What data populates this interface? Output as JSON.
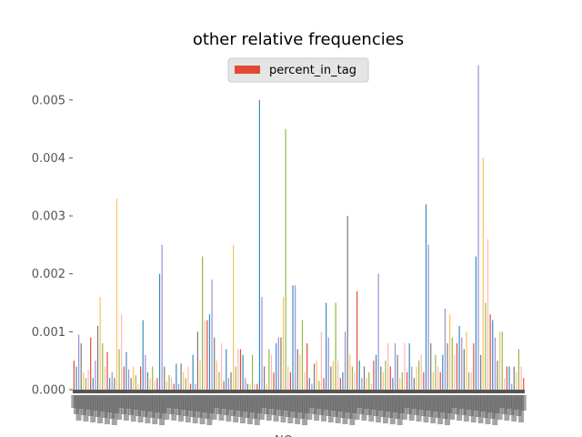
{
  "chart_data": {
    "type": "bar",
    "title": "other relative frequencies",
    "xlabel": "NO",
    "ylabel": "",
    "ylim": [
      0,
      0.0055
    ],
    "yticks": [
      "0.000",
      "0.001",
      "0.002",
      "0.003",
      "0.004",
      "0.005"
    ],
    "grid": false,
    "legend_position": "top-center",
    "series": [
      {
        "name": "percent_in_tag",
        "color": "#E24A33",
        "values": [
          0.0005,
          0.0004,
          0.00095,
          0.0008,
          0.0003,
          0.0002,
          0.00035,
          0.0009,
          0.0002,
          0.0005,
          0.0011,
          0.0016,
          0.0008,
          0.0004,
          0.00065,
          0.0002,
          0.0003,
          0.0002,
          0.0033,
          0.0007,
          0.0013,
          0.0004,
          0.00065,
          0.00035,
          0.0002,
          0.0004,
          0.00025,
          0.0001,
          0.0004,
          0.0012,
          0.0006,
          0.0003,
          0.0002,
          0.0004,
          0.00015,
          0.0002,
          0.002,
          0.0025,
          0.0004,
          0.00015,
          0.00025,
          0.0002,
          0.0001,
          0.00045,
          0.0001,
          0.00045,
          0.0003,
          0.0002,
          0.0004,
          0.0001,
          0.0006,
          0.0001,
          0.001,
          0.0005,
          0.0023,
          0.0012,
          0.0012,
          0.0013,
          0.0019,
          0.0009,
          0.0005,
          0.0003,
          0.0008,
          0.00015,
          0.0007,
          0.0002,
          0.0003,
          0.0025,
          0.0004,
          0.0007,
          0.0007,
          0.0006,
          0.0002,
          0.0001,
          0.0001,
          0.0006,
          0.0001,
          0.0001,
          0.005,
          0.0016,
          0.0004,
          0.0001,
          0.0007,
          0.0006,
          0.0003,
          0.0008,
          0.0009,
          0.0009,
          0.0016,
          0.0045,
          0.0004,
          0.0003,
          0.0018,
          0.0018,
          0.0007,
          0.0006,
          0.0012,
          0.0003,
          0.0008,
          0.0002,
          0.0001,
          0.00045,
          0.0005,
          0.00015,
          0.001,
          0.0002,
          0.0015,
          0.0009,
          0.0004,
          0.0005,
          0.0015,
          0.0005,
          0.0002,
          0.0003,
          0.001,
          0.003,
          0.0006,
          0.0004,
          0.0003,
          0.0017,
          0.0005,
          0.0002,
          0.0004,
          0.0002,
          0.0003,
          0.0001,
          0.0005,
          0.0006,
          0.002,
          0.0004,
          0.0003,
          0.0005,
          0.0008,
          0.0004,
          0.0002,
          0.0008,
          0.0006,
          0.0002,
          0.0003,
          0.0008,
          0.0003,
          0.0008,
          0.0004,
          0.0002,
          0.0004,
          0.0005,
          0.0006,
          0.0003,
          0.0032,
          0.0025,
          0.0008,
          0.0003,
          0.0006,
          0.0004,
          0.0003,
          0.0006,
          0.0014,
          0.0008,
          0.0013,
          0.0009,
          0.0006,
          0.0008,
          0.0011,
          0.0009,
          0.0007,
          0.001,
          0.0003,
          0.0003,
          0.0008,
          0.0023,
          0.0056,
          0.0006,
          0.004,
          0.0015,
          0.0026,
          0.0013,
          0.0012,
          0.0009,
          0.0005,
          0.001,
          0.001,
          0.0002,
          0.0004,
          0.0004,
          0.0001,
          0.0004,
          0.0003,
          0.0007,
          0.0004,
          0.0002
        ]
      }
    ]
  }
}
